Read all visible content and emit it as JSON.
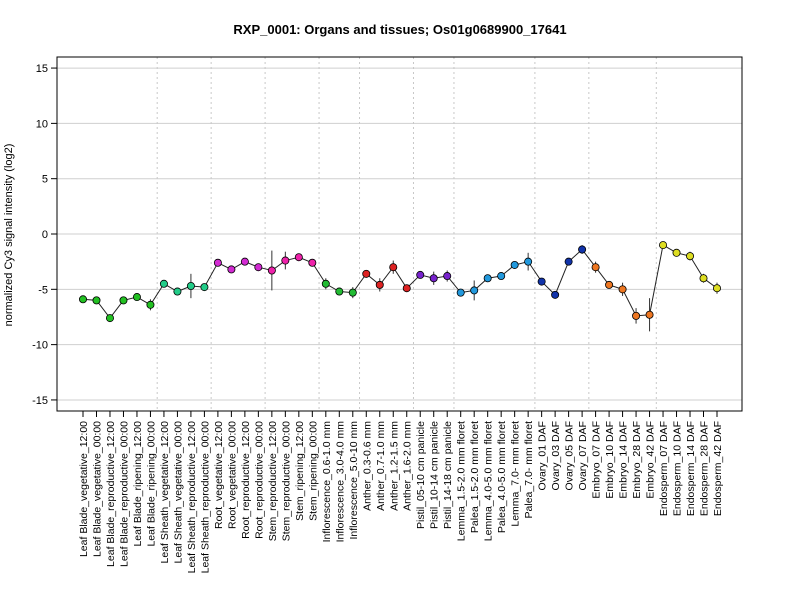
{
  "chart_data": {
    "type": "line",
    "title": "RXP_0001: Organs and tissues; Os01g0689900_17641",
    "ylabel": "normalized Cy3 signal intensity (log2)",
    "xlabel": "",
    "ylim": [
      -16,
      16
    ],
    "yticks": [
      -15,
      -10,
      -5,
      0,
      5,
      10,
      15
    ],
    "grid": true,
    "legend": "none",
    "categories": [
      "Leaf Blade_vegetative_12:00",
      "Leaf Blade_vegetative_00:00",
      "Leaf Blade_reproductive_12:00",
      "Leaf Blade_reproductive_00:00",
      "Leaf Blade_ripening_12:00",
      "Leaf Blade_ripening_00:00",
      "Leaf Sheath_vegetative_12:00",
      "Leaf Sheath_vegetative_00:00",
      "Leaf Sheath_reproductive_12:00",
      "Leaf Sheath_reproductive_00:00",
      "Root_vegetative_12:00",
      "Root_vegetative_00:00",
      "Root_reproductive_12:00",
      "Root_reproductive_00:00",
      "Stem_reproductive_12:00",
      "Stem_reproductive_00:00",
      "Stem_ripening_12:00",
      "Stem_ripening_00:00",
      "Inflorescence_0.6-1.0 mm",
      "Inflorescence_3.0-4.0 mm",
      "Inflorescence_5.0-10 mm",
      "Anther_0.3-0.6 mm",
      "Anther_0.7-1.0 mm",
      "Anther_1.2-1.5 mm",
      "Anther_1.6-2.0 mm",
      "Pistil_05-10 cm panicle",
      "Pistil_10-14 cm panicle",
      "Pistil_14-18 cm panicle",
      "Lemma_1.5-2.0 mm floret",
      "Palea_1.5-2.0 mm floret",
      "Lemma_4.0-5.0 mm floret",
      "Palea_4.0-5.0 mm floret",
      "Lemma_7.0- mm floret",
      "Palea_7.0- mm floret",
      "Ovary_01 DAF",
      "Ovary_03 DAF",
      "Ovary_05 DAF",
      "Ovary_07 DAF",
      "Embryo_07 DAF",
      "Embryo_10 DAF",
      "Embryo_14 DAF",
      "Embryo_28 DAF",
      "Embryo_42 DAF",
      "Endosperm_07 DAF",
      "Endosperm_10 DAF",
      "Endosperm_14 DAF",
      "Endosperm_28 DAF",
      "Endosperm_42 DAF"
    ],
    "values": [
      -5.9,
      -6.0,
      -7.6,
      -6.0,
      -5.7,
      -6.4,
      -4.5,
      -5.2,
      -4.7,
      -4.8,
      -2.6,
      -3.2,
      -2.5,
      -3.0,
      -3.3,
      -2.4,
      -2.1,
      -2.6,
      -4.5,
      -5.2,
      -5.3,
      -3.6,
      -4.6,
      -3.0,
      -4.9,
      -3.7,
      -4.0,
      -3.8,
      -5.3,
      -5.1,
      -4.0,
      -3.8,
      -2.8,
      -2.5,
      -4.3,
      -5.5,
      -2.5,
      -1.4,
      -3.0,
      -4.6,
      -5.0,
      -7.4,
      -7.3,
      -1.0,
      -1.7,
      -2.0,
      -4.0,
      -4.9
    ],
    "errors": [
      0.2,
      0.2,
      0.3,
      0.2,
      0.3,
      0.5,
      0.2,
      0.2,
      1.1,
      0.3,
      0.3,
      0.3,
      0.2,
      0.3,
      1.8,
      0.8,
      0.2,
      0.3,
      0.5,
      0.3,
      0.5,
      0.3,
      0.6,
      0.6,
      0.2,
      0.3,
      0.6,
      0.5,
      0.3,
      0.9,
      0.2,
      0.2,
      0.3,
      0.8,
      0.2,
      0.2,
      0.2,
      0.4,
      0.5,
      0.2,
      0.6,
      0.7,
      1.5,
      0.2,
      0.2,
      0.4,
      0.4,
      0.5
    ],
    "colors": [
      "#22c022",
      "#22c022",
      "#22c022",
      "#22c022",
      "#22c022",
      "#22c022",
      "#22cc88",
      "#22cc88",
      "#22cc88",
      "#22cc88",
      "#d22ad2",
      "#d22ad2",
      "#d22ad2",
      "#d22ad2",
      "#ee22aa",
      "#ee22aa",
      "#ee22aa",
      "#ee22aa",
      "#22bb33",
      "#22bb33",
      "#22bb33",
      "#dd2222",
      "#dd2222",
      "#dd2222",
      "#dd2222",
      "#7722cc",
      "#7722cc",
      "#7722cc",
      "#2299dd",
      "#2299dd",
      "#2299dd",
      "#2299dd",
      "#2299dd",
      "#2299dd",
      "#1133aa",
      "#1133aa",
      "#1133aa",
      "#1133aa",
      "#ee7722",
      "#ee7722",
      "#ee7722",
      "#ee7722",
      "#ee7722",
      "#dddd22",
      "#dddd22",
      "#dddd22",
      "#dddd22",
      "#dddd22"
    ],
    "vlines_after_index": [
      5,
      9,
      13,
      17,
      20,
      24,
      27,
      33,
      37,
      42
    ]
  }
}
